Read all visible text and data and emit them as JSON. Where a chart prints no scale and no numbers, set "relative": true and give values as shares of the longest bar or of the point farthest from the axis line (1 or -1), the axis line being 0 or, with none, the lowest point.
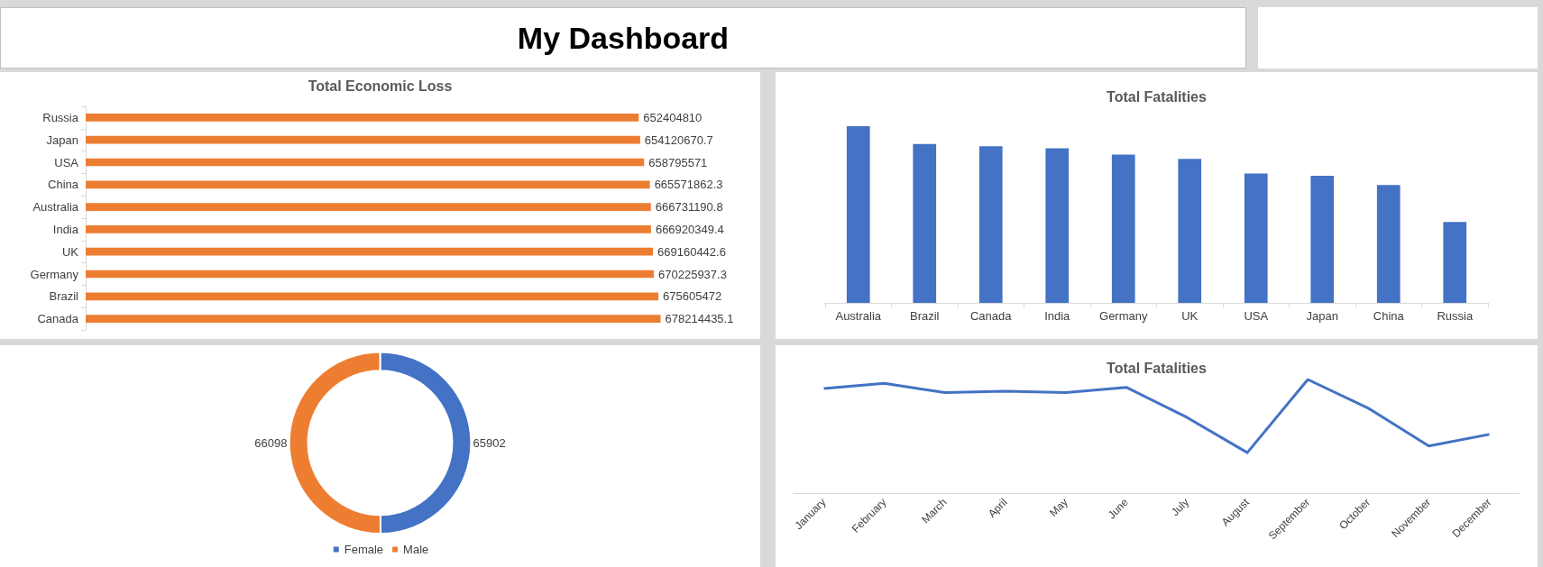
{
  "chart_data": [
    {
      "type": "other",
      "title": "My Dashboard"
    },
    {
      "type": "bar",
      "title": "Total Economic Loss",
      "orientation": "horizontal",
      "categories": [
        "Russia",
        "Japan",
        "USA",
        "China",
        "Australia",
        "India",
        "UK",
        "Germany",
        "Brazil",
        "Canada"
      ],
      "values": [
        652404810,
        654120670.7,
        658795571,
        665571862.3,
        666731190.8,
        666920349.4,
        669160442.6,
        670225937.3,
        675605472,
        678214435.1
      ],
      "color": "#ed7d31",
      "data_labels": true
    },
    {
      "type": "bar",
      "title": "Total Fatalities",
      "relative": true,
      "categories": [
        "Australia",
        "Brazil",
        "Canada",
        "India",
        "Germany",
        "UK",
        "USA",
        "Japan",
        "China",
        "Russia"
      ],
      "values": [
        1,
        0.899,
        0.887,
        0.875,
        0.839,
        0.815,
        0.732,
        0.72,
        0.667,
        0.458
      ],
      "color": "#4472c4"
    },
    {
      "type": "donut",
      "categories": [
        "Female",
        "Male"
      ],
      "values": [
        65902,
        66098
      ],
      "colors": [
        "#4472c4",
        "#ed7d31"
      ],
      "legend": "bottom",
      "data_labels": true
    },
    {
      "type": "line",
      "title": "Total Fatalities",
      "relative": true,
      "categories": [
        "January",
        "February",
        "March",
        "April",
        "May",
        "June",
        "July",
        "August",
        "September",
        "October",
        "November",
        "December"
      ],
      "values": [
        0.92,
        0.966,
        0.885,
        0.897,
        0.885,
        0.931,
        0.667,
        0.356,
        1,
        0.747,
        0.414,
        0.517
      ],
      "color": "#4472c4",
      "marker": "none"
    }
  ]
}
